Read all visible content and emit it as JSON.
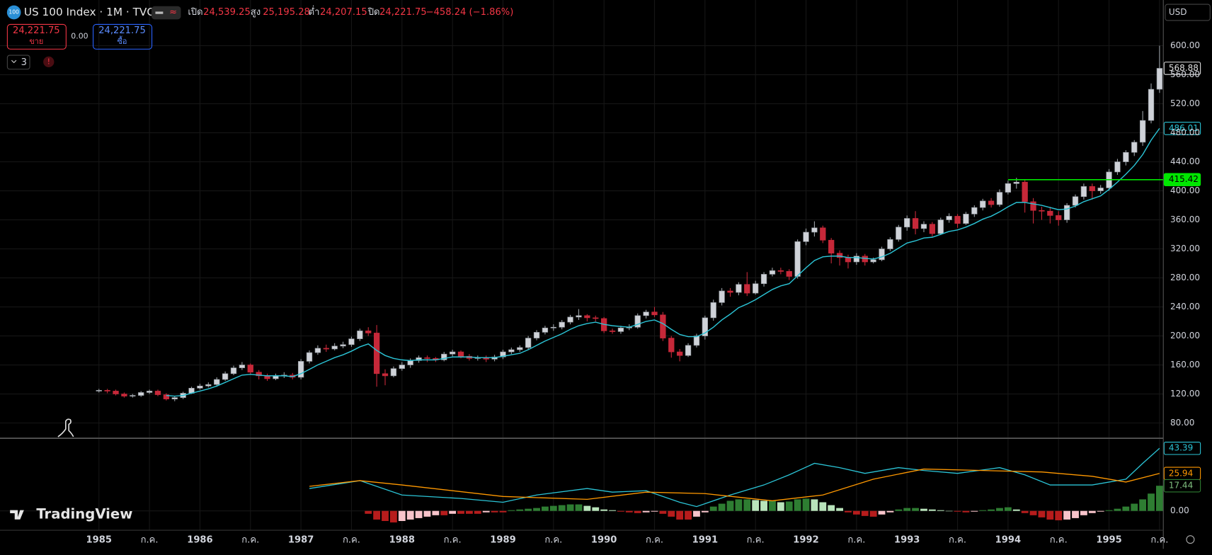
{
  "header": {
    "symbol_badge": "100",
    "ohlc": [
      {
        "label": "เปิด",
        "value": "24,539.25"
      },
      {
        "label": "สูง",
        "value": "25,195.28"
      },
      {
        "label": "ต่ำ",
        "value": "24,207.15"
      },
      {
        "label": "ปิด",
        "value": "24,221.75"
      }
    ],
    "change": "−458.24 (−1.86%)",
    "sell": {
      "price": "24,221.75",
      "label": "ขาย"
    },
    "spread": "0.00",
    "buy": {
      "price": "24,221.75",
      "label": "ซื้อ"
    },
    "indicators_count": "3",
    "alert": "!",
    "currency": "USD",
    "logo": "TradingView"
  },
  "chart_data": [
    {
      "type": "candlestick",
      "title": "US 100 Index · 1M · TVC",
      "up_color": "#cfd2d8",
      "down_color": "#c62839",
      "grid": true,
      "open": [
        124,
        125,
        124,
        120,
        117,
        118,
        122,
        124,
        119,
        113,
        115,
        121,
        128,
        131,
        133,
        140,
        148,
        156,
        160,
        150,
        145,
        141,
        145,
        146,
        143,
        165,
        177,
        183,
        182,
        186,
        188,
        196,
        207,
        204,
        148,
        145,
        155,
        160,
        166,
        170,
        169,
        167,
        175,
        178,
        172,
        169,
        170,
        168,
        171,
        178,
        181,
        184,
        197,
        205,
        211,
        212,
        219,
        226,
        228,
        225,
        224,
        207,
        206,
        211,
        212,
        228,
        233,
        229,
        197,
        178,
        173,
        187,
        200,
        225,
        246,
        262,
        260,
        271,
        259,
        272,
        285,
        290,
        289,
        282,
        330,
        343,
        349,
        332,
        314,
        308,
        302,
        310,
        302,
        305,
        320,
        333,
        350,
        362,
        348,
        354,
        341,
        360,
        365,
        355,
        368,
        377,
        386,
        381,
        398,
        410,
        412,
        385,
        373,
        372,
        366,
        360,
        380,
        392,
        406,
        400,
        404,
        426,
        440,
        453,
        467,
        497,
        540
      ],
      "high": [
        127,
        127,
        126,
        122,
        120,
        124,
        126,
        126,
        121,
        117,
        123,
        130,
        134,
        136,
        143,
        151,
        159,
        164,
        162,
        153,
        148,
        148,
        150,
        149,
        168,
        180,
        187,
        188,
        190,
        192,
        199,
        210,
        212,
        215,
        154,
        158,
        164,
        169,
        173,
        173,
        171,
        178,
        181,
        180,
        175,
        173,
        173,
        174,
        181,
        184,
        187,
        200,
        208,
        214,
        216,
        222,
        229,
        237,
        230,
        228,
        226,
        210,
        214,
        216,
        231,
        236,
        240,
        233,
        200,
        182,
        190,
        203,
        228,
        250,
        266,
        266,
        274,
        288,
        276,
        288,
        294,
        294,
        292,
        333,
        348,
        358,
        352,
        335,
        318,
        312,
        314,
        313,
        308,
        323,
        336,
        353,
        366,
        372,
        358,
        357,
        363,
        369,
        368,
        371,
        380,
        389,
        390,
        402,
        414,
        418,
        416,
        390,
        378,
        378,
        372,
        383,
        395,
        410,
        410,
        408,
        430,
        444,
        456,
        470,
        510,
        548,
        600
      ],
      "low": [
        122,
        121,
        118,
        115,
        115,
        116,
        120,
        117,
        111,
        110,
        113,
        120,
        126,
        129,
        130,
        138,
        146,
        153,
        147,
        140,
        138,
        139,
        142,
        140,
        140,
        162,
        174,
        178,
        180,
        183,
        185,
        193,
        200,
        130,
        132,
        143,
        152,
        156,
        163,
        164,
        164,
        165,
        172,
        169,
        166,
        166,
        164,
        165,
        168,
        175,
        178,
        181,
        194,
        202,
        207,
        209,
        216,
        222,
        220,
        220,
        204,
        203,
        203,
        208,
        210,
        224,
        226,
        193,
        170,
        165,
        171,
        184,
        195,
        221,
        242,
        254,
        256,
        255,
        257,
        268,
        282,
        285,
        277,
        279,
        325,
        337,
        328,
        300,
        297,
        293,
        298,
        297,
        300,
        303,
        317,
        330,
        345,
        340,
        343,
        337,
        339,
        356,
        349,
        353,
        364,
        373,
        377,
        378,
        395,
        403,
        370,
        355,
        360,
        355,
        352,
        356,
        377,
        388,
        388,
        396,
        400,
        422,
        435,
        448,
        462,
        493,
        535
      ],
      "close": [
        125,
        124,
        120,
        117,
        118,
        122,
        124,
        119,
        113,
        115,
        121,
        128,
        131,
        133,
        140,
        148,
        156,
        160,
        150,
        145,
        141,
        145,
        146,
        143,
        165,
        177,
        183,
        182,
        186,
        188,
        196,
        207,
        204,
        148,
        145,
        155,
        160,
        166,
        170,
        169,
        167,
        175,
        178,
        172,
        169,
        170,
        168,
        171,
        178,
        181,
        184,
        197,
        205,
        211,
        212,
        219,
        226,
        228,
        225,
        224,
        207,
        206,
        211,
        212,
        228,
        233,
        229,
        197,
        178,
        173,
        187,
        200,
        225,
        246,
        262,
        260,
        271,
        259,
        272,
        285,
        290,
        289,
        282,
        330,
        343,
        349,
        332,
        314,
        308,
        302,
        310,
        302,
        305,
        320,
        333,
        350,
        362,
        348,
        354,
        341,
        360,
        365,
        355,
        368,
        377,
        386,
        381,
        398,
        410,
        412,
        385,
        373,
        372,
        366,
        360,
        380,
        392,
        406,
        400,
        404,
        426,
        440,
        453,
        467,
        497,
        540,
        568.88
      ],
      "series": [
        {
          "color": "#2bc4d6",
          "values": [
            null,
            null,
            null,
            null,
            null,
            null,
            null,
            null,
            118,
            117,
            118,
            121,
            124,
            127,
            131,
            136,
            141,
            146,
            147,
            146,
            145,
            145,
            145,
            144,
            148,
            154,
            160,
            165,
            170,
            174,
            179,
            185,
            189,
            180,
            173,
            169,
            167,
            166,
            167,
            167,
            167,
            169,
            171,
            171,
            171,
            170,
            170,
            170,
            172,
            174,
            176,
            181,
            187,
            193,
            198,
            203,
            209,
            214,
            217,
            219,
            216,
            214,
            213,
            212,
            216,
            220,
            222,
            217,
            209,
            202,
            199,
            199,
            204,
            212,
            222,
            230,
            239,
            244,
            250,
            257,
            264,
            269,
            272,
            283,
            294,
            304,
            309,
            310,
            310,
            308,
            308,
            307,
            306,
            309,
            314,
            321,
            328,
            331,
            335,
            336,
            340,
            344,
            346,
            350,
            355,
            361,
            365,
            371,
            378,
            384,
            384,
            382,
            380,
            377,
            374,
            375,
            379,
            385,
            389,
            393,
            402,
            412,
            423,
            435,
            450,
            470,
            486.01
          ]
        }
      ],
      "hline": {
        "value": 415.42,
        "start": 108,
        "color": "#00e600"
      },
      "ylim": [
        60,
        663
      ],
      "yticks": [
        {
          "value": 80,
          "label": "80.00"
        },
        {
          "value": 120,
          "label": "120.00"
        },
        {
          "value": 160,
          "label": "160.00"
        },
        {
          "value": 200,
          "label": "200.00"
        },
        {
          "value": 240,
          "label": "240.00"
        },
        {
          "value": 280,
          "label": "280.00"
        },
        {
          "value": 320,
          "label": "320.00"
        },
        {
          "value": 360,
          "label": "360.00"
        },
        {
          "value": 400,
          "label": "400.00"
        },
        {
          "value": 440,
          "label": "440.00"
        },
        {
          "value": 480,
          "label": "480.00"
        },
        {
          "value": 520,
          "label": "520.00"
        },
        {
          "value": 560,
          "label": "560.00"
        },
        {
          "value": 600,
          "label": "600.00"
        }
      ]
    },
    {
      "type": "macd",
      "grid": true,
      "series": [
        {
          "color": "#2bc4d6",
          "x": [
            25,
            31,
            36,
            43,
            48,
            52,
            58,
            61,
            65,
            69,
            71,
            75,
            79,
            82,
            85,
            88,
            91,
            95,
            98,
            102,
            107,
            110,
            113,
            118,
            122,
            124,
            126
          ],
          "values": [
            15.5,
            21,
            11,
            8.6,
            6,
            11,
            15.5,
            13,
            14,
            6,
            3,
            11,
            18,
            25,
            33,
            30,
            26,
            30,
            28,
            26,
            30,
            25,
            18,
            18,
            22,
            33,
            43.39
          ]
        },
        {
          "color": "#ff9800",
          "x": [
            25,
            31,
            36,
            48,
            58,
            65,
            72,
            80,
            86,
            92,
            98,
            105,
            112,
            118,
            122,
            126
          ],
          "values": [
            17,
            21,
            18,
            10,
            8,
            13,
            12,
            7,
            11,
            22,
            29,
            28,
            27,
            24,
            20,
            25.94
          ]
        }
      ],
      "histogram": {
        "start": 32,
        "colors": [
          "#2e7d32",
          "#b9e4bb",
          "#b71c1c",
          "#f8c4cb"
        ],
        "values": [
          -2,
          -6,
          -7,
          -8,
          -7,
          -6,
          -5,
          -4,
          -3,
          -3,
          -2,
          -2,
          -2,
          -2,
          -1,
          -1,
          -1,
          0.5,
          1,
          1.5,
          2,
          3,
          3.5,
          4,
          4.5,
          4.5,
          3.5,
          2.5,
          1,
          0.5,
          -0.5,
          -1,
          -1.5,
          -1,
          -0.5,
          -2,
          -4,
          -6,
          -6,
          -4,
          -1,
          3,
          5,
          7,
          8,
          8,
          7.5,
          7,
          7,
          6,
          6.5,
          8,
          8.5,
          8,
          6,
          4,
          2,
          -1,
          -2.5,
          -3.5,
          -4,
          -2.5,
          -1,
          1,
          2,
          2,
          1.5,
          1,
          0.5,
          0,
          -0.5,
          -1,
          -0.5,
          0.5,
          1,
          2,
          2.5,
          1,
          -1.5,
          -3,
          -4.5,
          -6,
          -6.5,
          -6,
          -5,
          -3,
          -1.5,
          -0.5,
          0.5,
          1.5,
          3,
          5,
          8,
          12,
          17.44
        ]
      },
      "ylim": [
        -13.4,
        49.8
      ],
      "yticks": [
        {
          "value": 0,
          "label": "0.00"
        }
      ],
      "xticks": [
        {
          "value": 0,
          "label": "1985"
        },
        {
          "value": 6,
          "label": "ก.ค."
        },
        {
          "value": 12,
          "label": "1986"
        },
        {
          "value": 18,
          "label": "ก.ค."
        },
        {
          "value": 24,
          "label": "1987"
        },
        {
          "value": 30,
          "label": "ก.ค."
        },
        {
          "value": 36,
          "label": "1988"
        },
        {
          "value": 42,
          "label": "ก.ค."
        },
        {
          "value": 48,
          "label": "1989"
        },
        {
          "value": 54,
          "label": "ก.ค."
        },
        {
          "value": 60,
          "label": "1990"
        },
        {
          "value": 66,
          "label": "ก.ค."
        },
        {
          "value": 72,
          "label": "1991"
        },
        {
          "value": 78,
          "label": "ก.ค."
        },
        {
          "value": 84,
          "label": "1992"
        },
        {
          "value": 90,
          "label": "ก.ค."
        },
        {
          "value": 96,
          "label": "1993"
        },
        {
          "value": 102,
          "label": "ก.ค."
        },
        {
          "value": 108,
          "label": "1994"
        },
        {
          "value": 114,
          "label": "ก.ค."
        },
        {
          "value": 120,
          "label": "1995"
        },
        {
          "value": 126,
          "label": "ก.ค."
        }
      ]
    }
  ]
}
